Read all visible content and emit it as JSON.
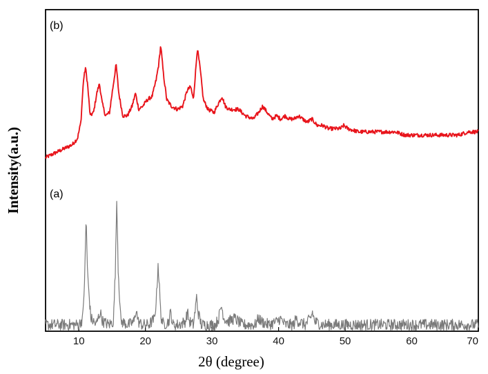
{
  "chart_data": {
    "type": "line",
    "title": "",
    "xlabel": "2θ (degree)",
    "ylabel": "Intensity(a.u.)",
    "xlim": [
      5,
      70
    ],
    "ylim": [
      0,
      100
    ],
    "x_ticks": [
      10,
      20,
      30,
      40,
      50,
      60,
      70
    ],
    "grid": false,
    "legend": "none",
    "series": [
      {
        "name": "(b)",
        "color": "#e8141b",
        "noise": 0.6,
        "x": [
          5.0,
          6.0,
          7.0,
          8.0,
          9.0,
          9.8,
          10.3,
          10.7,
          11.0,
          11.3,
          11.7,
          12.2,
          12.7,
          13.1,
          13.5,
          14.0,
          14.6,
          15.2,
          15.6,
          16.0,
          16.6,
          17.3,
          18.0,
          18.5,
          19.0,
          19.6,
          20.3,
          21.0,
          21.6,
          22.0,
          22.3,
          22.7,
          23.2,
          23.9,
          24.8,
          25.6,
          26.3,
          26.8,
          27.2,
          27.8,
          28.2,
          28.7,
          29.4,
          30.3,
          31.0,
          31.5,
          32.0,
          32.6,
          33.3,
          34.0,
          35.0,
          36.2,
          37.0,
          37.6,
          38.3,
          39.0,
          39.7,
          40.3,
          41.0,
          41.6,
          42.3,
          43.0,
          43.6,
          44.3,
          45.0,
          45.8,
          46.6,
          47.5,
          48.4,
          49.3,
          49.8,
          50.4,
          52.0,
          54.0,
          56.0,
          57.5,
          59.0,
          61.0,
          63.0,
          65.0,
          67.0,
          68.5,
          70.0
        ],
        "y": [
          54,
          55,
          56,
          57,
          58,
          60,
          65,
          78,
          82,
          77,
          67,
          68,
          74,
          77,
          71,
          67,
          68,
          77,
          83,
          74,
          67,
          67,
          70,
          74,
          69,
          70,
          72,
          73,
          78,
          83,
          89,
          80,
          72,
          70,
          69,
          70,
          75,
          76,
          72,
          88,
          82,
          72,
          69,
          68,
          71,
          73,
          70,
          69,
          69,
          69,
          67,
          66,
          68,
          70,
          68,
          66,
          67,
          66,
          67,
          66,
          66,
          67,
          66,
          65,
          66,
          64,
          64,
          63,
          63,
          63,
          64,
          63,
          62,
          62,
          62,
          62,
          61,
          61,
          61,
          61,
          61,
          62,
          62
        ]
      },
      {
        "name": "(a)",
        "color": "#7a7a7a",
        "noise": 1.8,
        "x": [
          5.0,
          10.0,
          10.6,
          10.9,
          11.1,
          11.3,
          11.8,
          12.6,
          12.9,
          13.2,
          13.6,
          14.5,
          15.2,
          15.5,
          15.7,
          15.9,
          16.3,
          17.5,
          18.3,
          18.6,
          18.9,
          19.5,
          20.5,
          21.4,
          21.7,
          21.9,
          22.1,
          22.3,
          22.7,
          23.5,
          23.8,
          24.1,
          25.0,
          26.0,
          26.3,
          26.6,
          27.2,
          27.5,
          27.7,
          27.9,
          28.4,
          29.5,
          30.5,
          31.0,
          31.4,
          31.8,
          32.5,
          33.4,
          34.5,
          36.5,
          37.0,
          37.4,
          38.5,
          39.8,
          40.2,
          41.0,
          42.3,
          42.6,
          43.0,
          44.0,
          44.8,
          45.1,
          45.4,
          46.5,
          50.0,
          55.0,
          60.0,
          65.0,
          70.0
        ],
        "y": [
          2,
          2,
          4,
          18,
          36,
          18,
          4,
          2,
          4,
          6,
          3,
          2,
          3,
          20,
          42,
          20,
          3,
          2,
          3,
          7,
          3,
          2,
          2,
          4,
          12,
          21,
          14,
          5,
          2,
          3,
          6,
          2,
          2,
          3,
          6,
          3,
          2,
          7,
          11,
          6,
          2,
          2,
          2,
          4,
          8,
          4,
          3,
          4,
          2,
          2,
          4,
          3,
          2,
          3,
          4,
          2,
          2,
          4,
          3,
          2,
          4,
          6,
          3,
          2,
          2,
          2,
          2,
          2,
          2
        ]
      }
    ]
  }
}
